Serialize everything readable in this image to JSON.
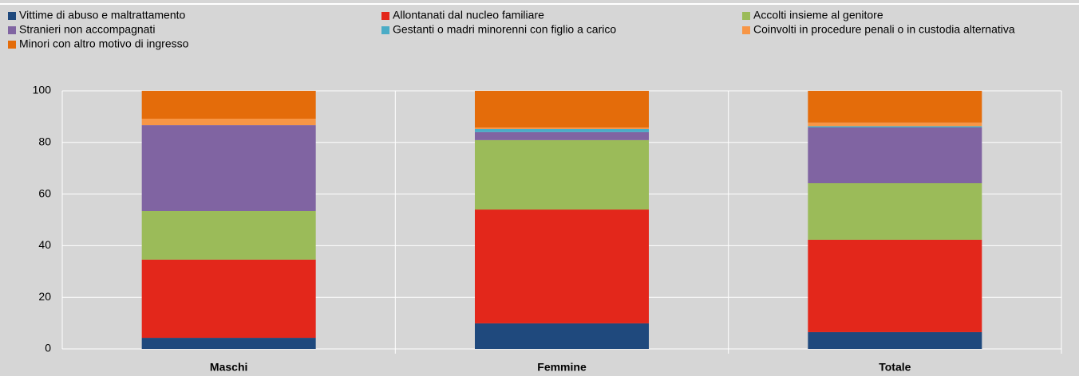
{
  "chart_data": {
    "type": "stacked_bar",
    "categories": [
      "Maschi",
      "Femmine",
      "Totale"
    ],
    "series": [
      {
        "name": "Vittime di abuso e maltrattamento",
        "color": "#1f497d",
        "values": [
          4.3,
          9.9,
          6.5
        ]
      },
      {
        "name": "Allontanati dal nucleo familiare",
        "color": "#e3271b",
        "values": [
          30.3,
          44.1,
          35.8
        ]
      },
      {
        "name": "Accolti insieme al genitore",
        "color": "#9bbb59",
        "values": [
          18.8,
          26.9,
          21.9
        ]
      },
      {
        "name": "Stranieri non accompagnati",
        "color": "#8064a2",
        "values": [
          33.3,
          3.1,
          21.6
        ]
      },
      {
        "name": "Gestanti o madri minorenni con figlio a carico",
        "color": "#4bacc6",
        "values": [
          0,
          1.2,
          0.5
        ]
      },
      {
        "name": "Coinvolti in procedure penali o in custodia alternativa",
        "color": "#f79646",
        "values": [
          2.5,
          0.6,
          1.4
        ]
      },
      {
        "name": "Minori con altro motivo di ingresso",
        "color": "#e46c0a",
        "values": [
          10.8,
          14.2,
          12.3
        ]
      }
    ],
    "ylim": [
      0,
      100
    ],
    "yticks": [
      0,
      20,
      40,
      60,
      80,
      100
    ],
    "grid": true
  }
}
